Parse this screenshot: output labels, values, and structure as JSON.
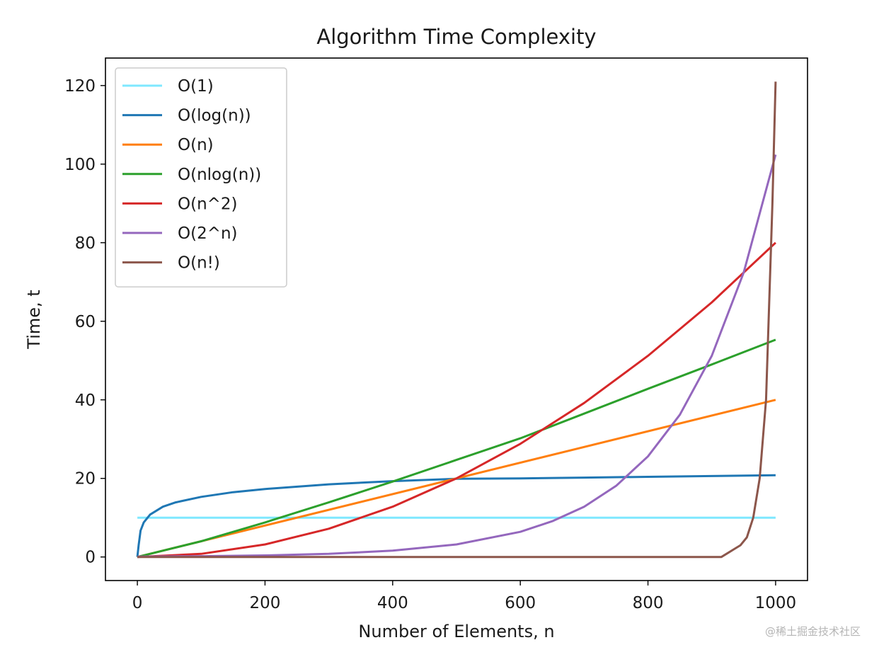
{
  "chart_data": {
    "type": "line",
    "title": "Algorithm Time Complexity",
    "xlabel": "Number of Elements, n",
    "ylabel": "Time, t",
    "xlim": [
      -50,
      1050
    ],
    "ylim": [
      -6,
      127
    ],
    "x_ticks": [
      0,
      200,
      400,
      600,
      800,
      1000
    ],
    "y_ticks": [
      0,
      20,
      40,
      60,
      80,
      100,
      120
    ],
    "grid": false,
    "legend_position": "top-left",
    "series": [
      {
        "name": "O(1)",
        "color": "#7fe8ff",
        "x": [
          0,
          1000
        ],
        "y": [
          10,
          10
        ]
      },
      {
        "name": "O(log(n))",
        "color": "#1f77b4",
        "x": [
          0,
          2,
          5,
          10,
          20,
          40,
          60,
          100,
          150,
          200,
          300,
          400,
          500,
          600,
          700,
          800,
          900,
          1000
        ],
        "y": [
          0,
          3.0,
          6.7,
          8.8,
          10.8,
          12.8,
          13.9,
          15.3,
          16.5,
          17.3,
          18.5,
          19.3,
          19.9,
          20.0,
          20.2,
          20.4,
          20.6,
          20.8
        ]
      },
      {
        "name": "O(n)",
        "color": "#ff7f0e",
        "x": [
          0,
          1000
        ],
        "y": [
          0,
          40
        ]
      },
      {
        "name": "O(nlog(n))",
        "color": "#2ca02c",
        "x": [
          0,
          100,
          200,
          300,
          400,
          500,
          600,
          700,
          800,
          900,
          1000
        ],
        "y": [
          0,
          4.0,
          8.8,
          13.9,
          19.2,
          24.7,
          30.2,
          36.5,
          42.8,
          49.0,
          55.3
        ]
      },
      {
        "name": "O(n^2)",
        "color": "#d62728",
        "x": [
          0,
          100,
          200,
          300,
          400,
          500,
          600,
          700,
          800,
          900,
          1000
        ],
        "y": [
          0,
          0.8,
          3.2,
          7.2,
          12.8,
          20.0,
          28.8,
          39.2,
          51.2,
          64.8,
          80.0
        ]
      },
      {
        "name": "O(2^n)",
        "color": "#9467bd",
        "x": [
          0,
          100,
          200,
          300,
          400,
          500,
          600,
          650,
          700,
          750,
          800,
          850,
          900,
          950,
          1000
        ],
        "y": [
          0.1,
          0.2,
          0.4,
          0.8,
          1.6,
          3.2,
          6.4,
          9.1,
          12.8,
          18.1,
          25.6,
          36.2,
          51.2,
          72.4,
          102.4
        ]
      },
      {
        "name": "O(n!)",
        "color": "#8c564b",
        "x": [
          0,
          900,
          915,
          925,
          935,
          945,
          955,
          965,
          975,
          985,
          995,
          1000
        ],
        "y": [
          0,
          0,
          0,
          1,
          2,
          3,
          5,
          10,
          20,
          40,
          90,
          121
        ]
      }
    ]
  },
  "watermark": "@稀土掘金技术社区"
}
